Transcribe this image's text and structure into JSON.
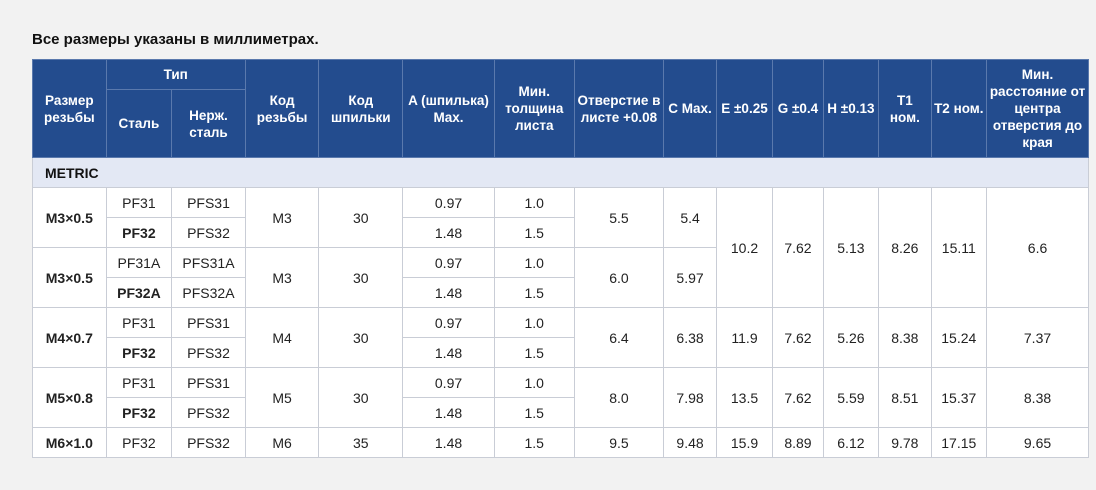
{
  "caption": "Все размеры указаны в миллиметрах.",
  "headers": {
    "thread_size": "Размер резьбы",
    "type": "Тип",
    "type_steel": "Сталь",
    "type_stainless": "Нерж. сталь",
    "thread_code": "Код резьбы",
    "stud_code": "Код шпильки",
    "a": "A (шпилька) Max.",
    "min_thickness": "Мин. толщина листа",
    "hole": "Отверстие в листе +0.08",
    "c": "C Max.",
    "e": "E ±0.25",
    "g": "G ±0.4",
    "h": "H ±0.13",
    "t1": "T1 ном.",
    "t2": "T2 ном.",
    "min_edge": "Мин. расстояние от центра отверстия до края"
  },
  "section": "METRIC",
  "groups": [
    {
      "thread": "M3×0.5",
      "thread_code": "M3",
      "stud_code": "30",
      "hole": "5.5",
      "c": "5.4",
      "rows": [
        {
          "steel": "PF31",
          "steel_bold": false,
          "stainless": "PFS31",
          "a": "0.97",
          "min_t": "1.0"
        },
        {
          "steel": "PF32",
          "steel_bold": true,
          "stainless": "PFS32",
          "a": "1.48",
          "min_t": "1.5"
        }
      ]
    },
    {
      "thread": "M3×0.5",
      "thread_code": "M3",
      "stud_code": "30",
      "hole": "6.0",
      "c": "5.97",
      "rows": [
        {
          "steel": "PF31A",
          "steel_bold": false,
          "stainless": "PFS31A",
          "a": "0.97",
          "min_t": "1.0"
        },
        {
          "steel": "PF32A",
          "steel_bold": true,
          "stainless": "PFS32A",
          "a": "1.48",
          "min_t": "1.5"
        }
      ]
    },
    {
      "thread": "M4×0.7",
      "thread_code": "M4",
      "stud_code": "30",
      "hole": "6.4",
      "c": "6.38",
      "e": "11.9",
      "g": "7.62",
      "h": "5.26",
      "t1": "8.38",
      "t2": "15.24",
      "edge": "7.37",
      "rows": [
        {
          "steel": "PF31",
          "steel_bold": false,
          "stainless": "PFS31",
          "a": "0.97",
          "min_t": "1.0"
        },
        {
          "steel": "PF32",
          "steel_bold": true,
          "stainless": "PFS32",
          "a": "1.48",
          "min_t": "1.5"
        }
      ]
    },
    {
      "thread": "M5×0.8",
      "thread_code": "M5",
      "stud_code": "30",
      "hole": "8.0",
      "c": "7.98",
      "e": "13.5",
      "g": "7.62",
      "h": "5.59",
      "t1": "8.51",
      "t2": "15.37",
      "edge": "8.38",
      "rows": [
        {
          "steel": "PF31",
          "steel_bold": false,
          "stainless": "PFS31",
          "a": "0.97",
          "min_t": "1.0"
        },
        {
          "steel": "PF32",
          "steel_bold": true,
          "stainless": "PFS32",
          "a": "1.48",
          "min_t": "1.5"
        }
      ]
    },
    {
      "thread": "M6×1.0",
      "thread_code": "M6",
      "stud_code": "35",
      "hole": "9.5",
      "c": "9.48",
      "e": "15.9",
      "g": "8.89",
      "h": "6.12",
      "t1": "9.78",
      "t2": "17.15",
      "edge": "9.65",
      "rows": [
        {
          "steel": "PF32",
          "steel_bold": false,
          "stainless": "PFS32",
          "a": "1.48",
          "min_t": "1.5"
        }
      ]
    }
  ],
  "m3_shared": {
    "e": "10.2",
    "g": "7.62",
    "h": "5.13",
    "t1": "8.26",
    "t2": "15.11",
    "edge": "6.6"
  },
  "colors": {
    "header_bg": "#234c8e",
    "section_bg": "#e3e8f4",
    "page_bg": "#f2f2f2"
  }
}
